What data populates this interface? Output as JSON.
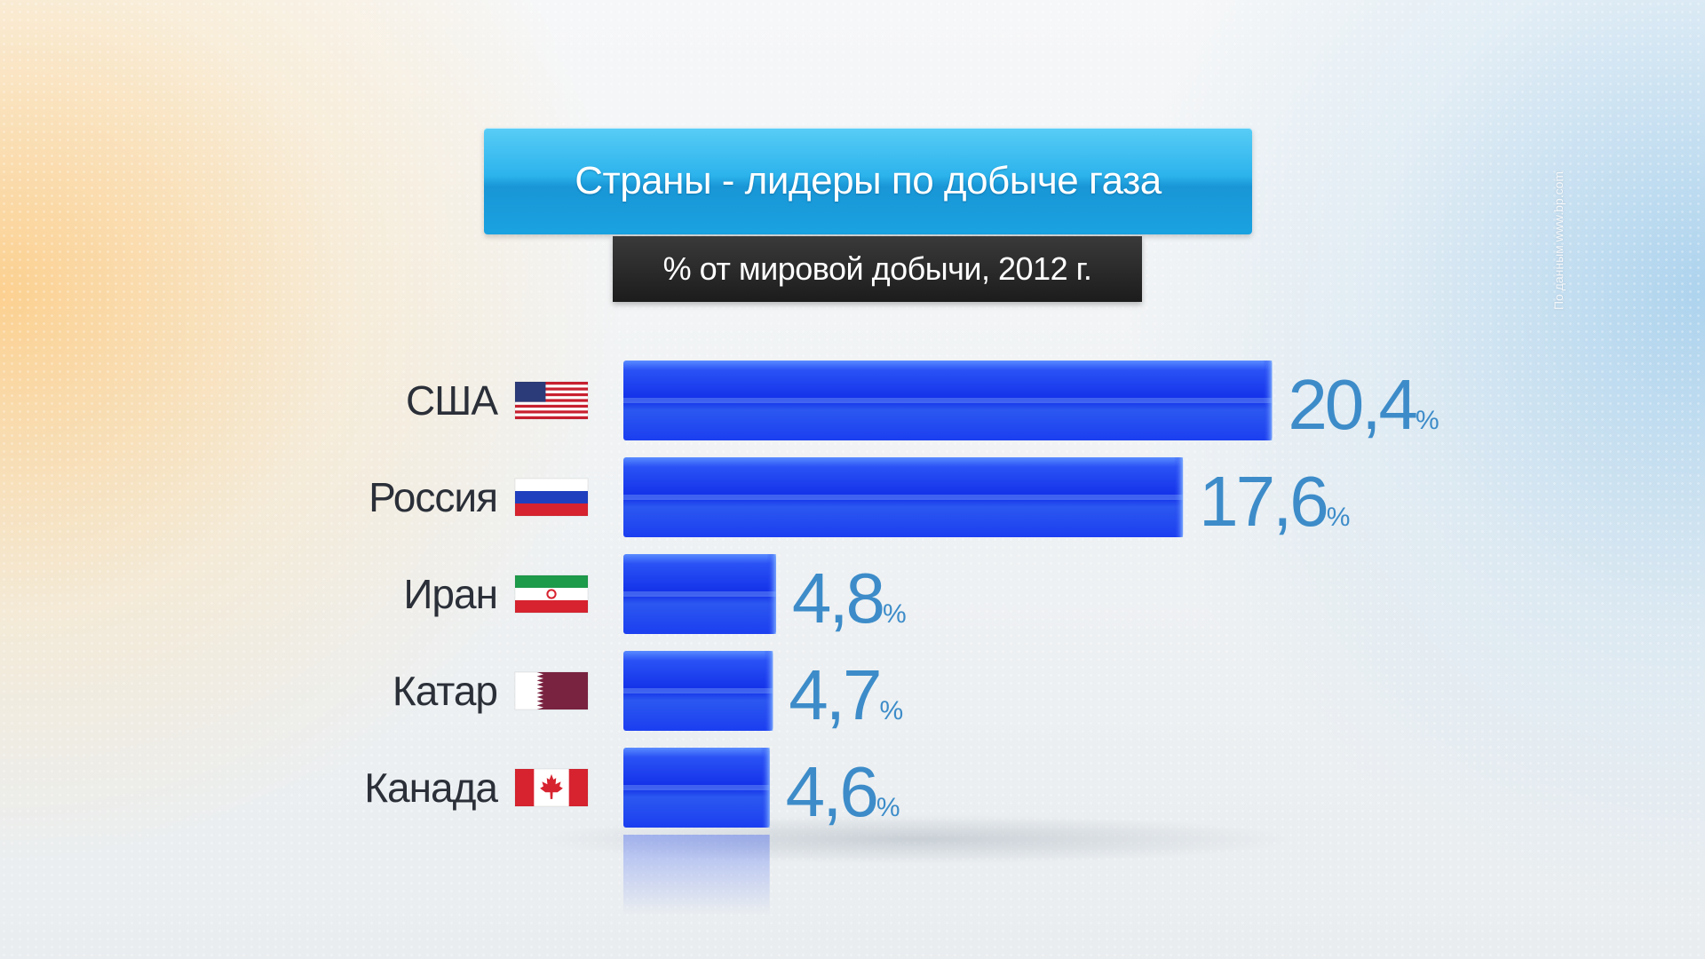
{
  "title": "Страны - лидеры по добыче газа",
  "subtitle": "% от мировой добычи, 2012 г.",
  "source": "По данным www.bp.com",
  "colors": {
    "bar": "#1a38f0",
    "value_text": "#3d8cc9",
    "title_bg": "#24aee9",
    "subtitle_bg": "#222222"
  },
  "chart_data": {
    "type": "bar",
    "orientation": "horizontal",
    "title": "Страны - лидеры по добыче газа",
    "subtitle": "% от мировой добычи, 2012 г.",
    "categories": [
      "США",
      "Россия",
      "Иран",
      "Катар",
      "Канада"
    ],
    "values": [
      20.4,
      17.6,
      4.8,
      4.7,
      4.6
    ],
    "value_labels": [
      "20,4",
      "17,6",
      "4,8",
      "4,7",
      "4,6"
    ],
    "unit": "%",
    "flags": [
      "us-flag-icon",
      "russia-flag-icon",
      "iran-flag-icon",
      "qatar-flag-icon",
      "canada-flag-icon"
    ],
    "grid": false,
    "legend": "none"
  }
}
